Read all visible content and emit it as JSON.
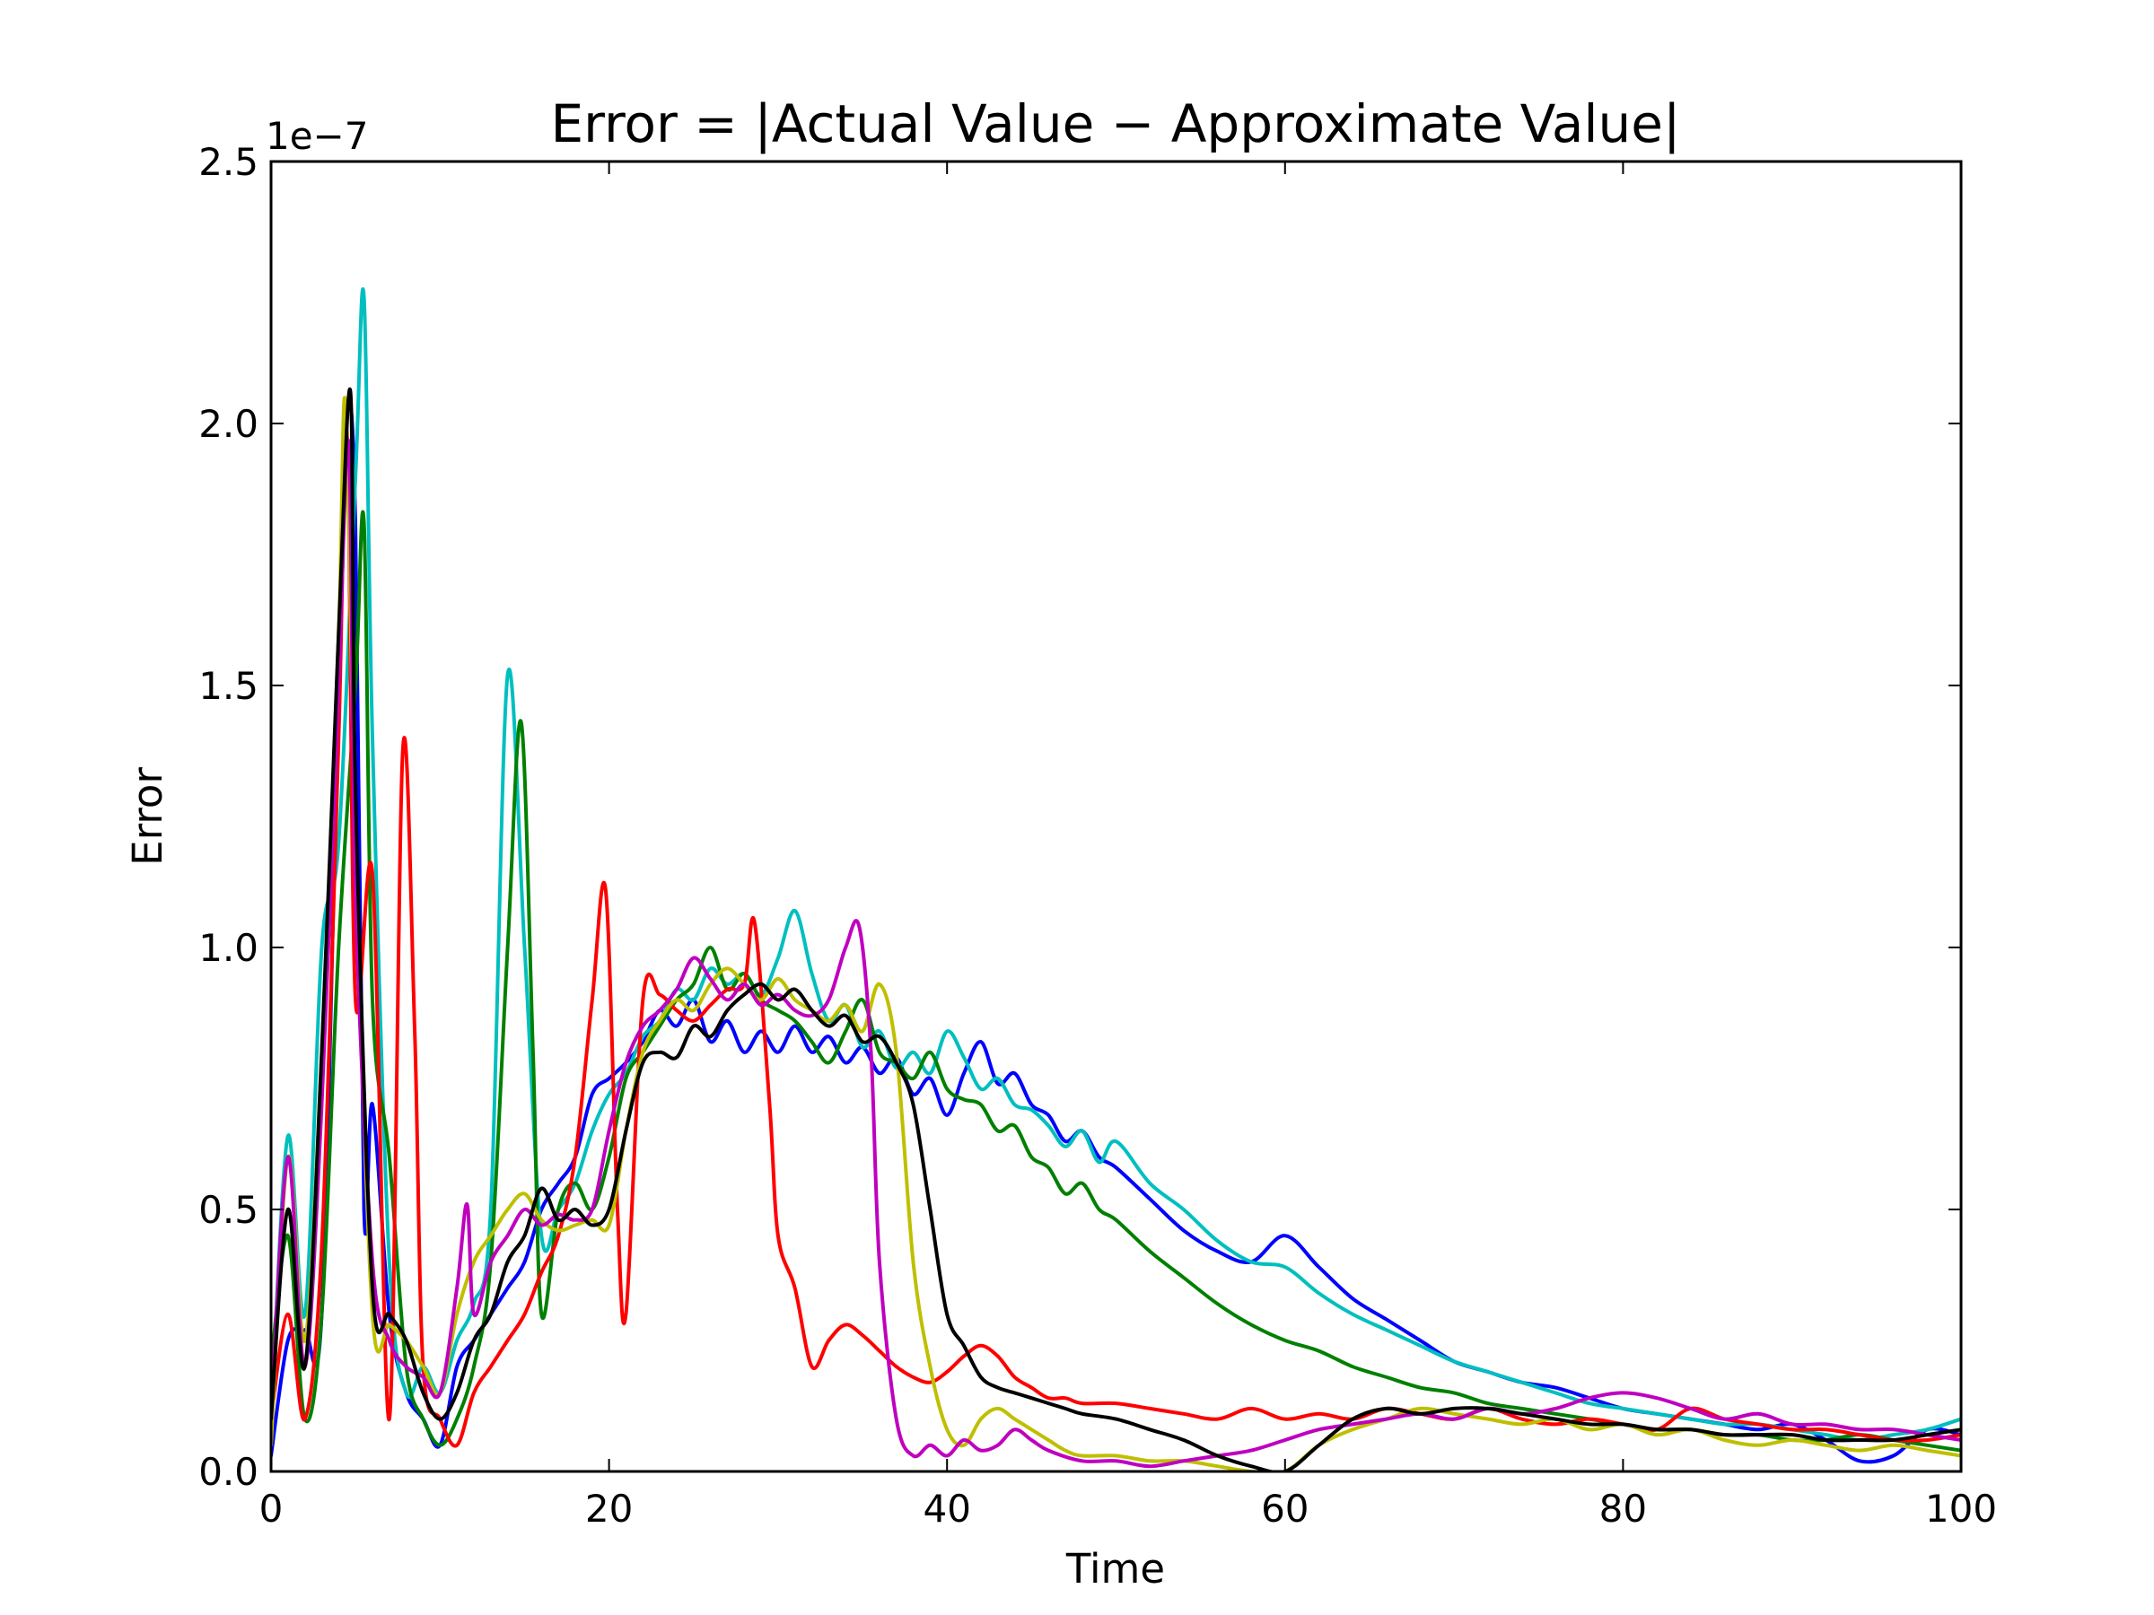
{
  "chart_data": {
    "type": "line",
    "title": "Error = |Actual Value − Approximate Value|",
    "xlabel": "Time",
    "ylabel": "Error",
    "y_offset_label": "1e−7",
    "xlim": [
      0,
      100
    ],
    "ylim": [
      0,
      2.5e-07
    ],
    "x_ticks": [
      0,
      20,
      40,
      60,
      80,
      100
    ],
    "x_tick_labels": [
      "0",
      "20",
      "40",
      "60",
      "80",
      "100"
    ],
    "y_ticks": [
      0,
      5e-08,
      1e-07,
      1.5e-07,
      2e-07,
      2.5e-07
    ],
    "y_tick_labels": [
      "0.0",
      "0.5",
      "1.0",
      "1.5",
      "2.0",
      "2.5"
    ],
    "grid": false,
    "legend": "none",
    "series": [
      {
        "color": "#0000ff",
        "x": [
          0,
          1,
          2,
          3,
          4,
          4.5,
          5,
          5.5,
          6,
          7,
          8,
          9,
          10,
          11,
          12,
          13,
          14,
          15,
          16,
          17,
          18,
          19,
          20,
          21,
          22,
          23,
          24,
          25,
          26,
          27,
          28,
          29,
          30,
          31,
          32,
          33,
          34,
          35,
          36,
          37,
          38,
          39,
          40,
          41,
          42,
          43,
          44,
          45,
          46,
          47,
          48,
          49,
          50,
          52,
          54,
          56,
          58,
          60,
          62,
          64,
          66,
          68,
          70,
          72,
          74,
          76,
          78,
          80,
          82,
          84,
          86,
          88,
          90,
          92,
          94,
          96,
          98,
          100
        ],
        "y": [
          3e-09,
          2.5e-08,
          2.7e-08,
          3e-08,
          1.5e-07,
          2.02e-07,
          1.8e-07,
          5e-08,
          7e-08,
          3e-08,
          1.5e-08,
          1e-08,
          5e-09,
          2e-08,
          2.5e-08,
          3e-08,
          3.5e-08,
          4e-08,
          5e-08,
          5.5e-08,
          6e-08,
          7.2e-08,
          7.5e-08,
          7.8e-08,
          8.2e-08,
          8.8e-08,
          8.5e-08,
          9e-08,
          8.2e-08,
          8.6e-08,
          8e-08,
          8.4e-08,
          8e-08,
          8.5e-08,
          8e-08,
          8.3e-08,
          7.8e-08,
          8.1e-08,
          7.6e-08,
          7.9e-08,
          7.2e-08,
          7.5e-08,
          6.8e-08,
          7.6e-08,
          8.2e-08,
          7.4e-08,
          7.6e-08,
          7e-08,
          6.8e-08,
          6.3e-08,
          6.5e-08,
          6e-08,
          5.8e-08,
          5.2e-08,
          4.6e-08,
          4.2e-08,
          4e-08,
          4.5e-08,
          3.9e-08,
          3.3e-08,
          2.9e-08,
          2.5e-08,
          2.1e-08,
          1.9e-08,
          1.7e-08,
          1.6e-08,
          1.4e-08,
          1.2e-08,
          1.1e-08,
          1e-08,
          9e-09,
          8e-09,
          9e-09,
          6e-09,
          2e-09,
          3e-09,
          8e-09,
          7e-09
        ]
      },
      {
        "color": "#00bfbf",
        "x": [
          0,
          1,
          2,
          3,
          4,
          5,
          5.5,
          6,
          7,
          8,
          9,
          10,
          11,
          12,
          13,
          14,
          15,
          16,
          17,
          18,
          19,
          20,
          21,
          22,
          23,
          24,
          25,
          26,
          27,
          28,
          29,
          30,
          31,
          32,
          33,
          34,
          35,
          36,
          37,
          38,
          39,
          40,
          41,
          42,
          43,
          44,
          45,
          46,
          47,
          48,
          49,
          50,
          52,
          54,
          56,
          58,
          60,
          62,
          64,
          66,
          68,
          70,
          72,
          74,
          76,
          78,
          80,
          82,
          84,
          86,
          88,
          90,
          92,
          94,
          96,
          98,
          100
        ],
        "y": [
          1e-08,
          6.4e-08,
          3e-08,
          1e-07,
          1.2e-07,
          1.9e-07,
          2.24e-07,
          1.4e-07,
          4e-08,
          1.5e-08,
          2e-08,
          1.5e-08,
          2.5e-08,
          3.2e-08,
          5e-08,
          1.52e-07,
          1e-07,
          4.5e-08,
          5e-08,
          5.5e-08,
          6.5e-08,
          7.2e-08,
          7.6e-08,
          8.3e-08,
          8.6e-08,
          9.2e-08,
          9e-08,
          9.6e-08,
          9.3e-08,
          9.5e-08,
          9.1e-08,
          9.8e-08,
          1.07e-07,
          9.5e-08,
          8.6e-08,
          8.9e-08,
          8.1e-08,
          8.4e-08,
          7.7e-08,
          8e-08,
          7.6e-08,
          8.4e-08,
          7.9e-08,
          7.3e-08,
          7.5e-08,
          7e-08,
          6.9e-08,
          6.6e-08,
          6.2e-08,
          6.5e-08,
          5.9e-08,
          6.3e-08,
          5.5e-08,
          5e-08,
          4.4e-08,
          4e-08,
          3.9e-08,
          3.4e-08,
          3e-08,
          2.7e-08,
          2.4e-08,
          2.1e-08,
          1.9e-08,
          1.7e-08,
          1.5e-08,
          1.3e-08,
          1.2e-08,
          1.1e-08,
          1e-08,
          9e-09,
          9e-09,
          8e-09,
          7e-09,
          6e-09,
          7e-09,
          8e-09,
          1e-08
        ]
      },
      {
        "color": "#008000",
        "x": [
          0,
          1,
          2,
          3,
          4,
          5,
          5.5,
          6,
          7,
          8,
          9,
          10,
          11,
          12,
          13,
          14,
          14.8,
          15.5,
          16,
          17,
          18,
          19,
          20,
          21,
          22,
          23,
          24,
          25,
          26,
          27,
          28,
          29,
          30,
          31,
          32,
          33,
          34,
          35,
          36,
          37,
          38,
          39,
          40,
          41,
          42,
          43,
          44,
          45,
          46,
          47,
          48,
          49,
          50,
          52,
          54,
          56,
          58,
          60,
          62,
          64,
          66,
          68,
          70,
          72,
          74,
          76,
          78,
          80,
          82,
          84,
          86,
          88,
          90,
          92,
          94,
          96,
          98,
          100
        ],
        "y": [
          2e-08,
          4.5e-08,
          1e-08,
          3e-08,
          1e-07,
          1.5e-07,
          1.81e-07,
          9e-08,
          6e-08,
          2e-08,
          1e-08,
          5e-09,
          1e-08,
          2e-08,
          4e-08,
          1e-07,
          1.43e-07,
          8e-08,
          3e-08,
          5e-08,
          5.5e-08,
          5e-08,
          6e-08,
          7.5e-08,
          8e-08,
          8.5e-08,
          9e-08,
          9.3e-08,
          1e-07,
          9.2e-08,
          9.5e-08,
          9e-08,
          8.8e-08,
          8.6e-08,
          8.2e-08,
          7.8e-08,
          8.4e-08,
          9e-08,
          8e-08,
          7.8e-08,
          7.5e-08,
          8e-08,
          7.3e-08,
          7.1e-08,
          7e-08,
          6.5e-08,
          6.6e-08,
          6e-08,
          5.8e-08,
          5.3e-08,
          5.5e-08,
          5e-08,
          4.8e-08,
          4.2e-08,
          3.7e-08,
          3.2e-08,
          2.8e-08,
          2.5e-08,
          2.3e-08,
          2e-08,
          1.8e-08,
          1.6e-08,
          1.5e-08,
          1.3e-08,
          1.2e-08,
          1.1e-08,
          1e-08,
          9e-09,
          8e-09,
          8e-09,
          7e-09,
          7e-09,
          6e-09,
          6e-09,
          7e-09,
          6e-09,
          5e-09,
          4e-09
        ]
      },
      {
        "color": "#ff0000",
        "x": [
          0,
          1,
          2,
          3,
          4,
          4.5,
          5,
          6,
          7,
          7.8,
          8.5,
          9,
          10,
          11,
          12,
          13,
          14,
          15,
          16,
          17,
          18,
          19,
          19.8,
          20.5,
          21,
          22,
          23,
          24,
          25,
          26,
          27,
          28,
          28.6,
          29.5,
          30,
          31,
          32,
          33,
          34,
          35,
          36,
          37,
          38,
          39,
          40,
          41,
          42,
          43,
          44,
          45,
          46,
          47,
          48,
          50,
          52,
          54,
          56,
          58,
          60,
          62,
          64,
          66,
          68,
          70,
          72,
          74,
          76,
          78,
          80,
          82,
          84,
          86,
          88,
          90,
          92,
          94,
          96,
          98,
          100
        ],
        "y": [
          1e-08,
          3e-08,
          1e-08,
          4.3e-08,
          1.4e-07,
          1.98e-07,
          9e-08,
          1.14e-07,
          1e-08,
          1.38e-07,
          8.4e-08,
          2e-08,
          1e-08,
          5e-09,
          1.5e-08,
          2e-08,
          2.5e-08,
          3e-08,
          3.8e-08,
          4.5e-08,
          6e-08,
          9e-08,
          1.11e-07,
          5e-08,
          3e-08,
          9e-08,
          9.1e-08,
          8.8e-08,
          8.6e-08,
          8.9e-08,
          9.2e-08,
          9.3e-08,
          1.05e-07,
          7e-08,
          4.5e-08,
          3.5e-08,
          2e-08,
          2.5e-08,
          2.8e-08,
          2.6e-08,
          2.3e-08,
          2e-08,
          1.8e-08,
          1.7e-08,
          1.9e-08,
          2.2e-08,
          2.4e-08,
          2.2e-08,
          1.8e-08,
          1.6e-08,
          1.4e-08,
          1.4e-08,
          1.3e-08,
          1.3e-08,
          1.2e-08,
          1.1e-08,
          1e-08,
          1.2e-08,
          1e-08,
          1.1e-08,
          1e-08,
          1.2e-08,
          1.1e-08,
          1e-08,
          1.2e-08,
          1e-08,
          9e-09,
          1e-08,
          9e-09,
          8e-09,
          1.2e-08,
          1e-08,
          9e-09,
          8e-09,
          8e-09,
          7e-09,
          6e-09,
          6e-09,
          7e-09
        ]
      },
      {
        "color": "#bfbf00",
        "x": [
          0,
          1,
          2,
          3,
          4,
          4.4,
          5,
          6,
          7,
          8,
          9,
          10,
          11,
          12,
          13,
          14,
          15,
          16,
          17,
          18,
          19,
          20,
          21,
          22,
          23,
          24,
          25,
          26,
          27,
          28,
          29,
          30,
          31,
          32,
          33,
          34,
          35,
          36,
          37,
          38,
          39,
          40,
          41,
          42,
          43,
          44,
          45,
          46,
          47,
          48,
          50,
          52,
          54,
          56,
          58,
          60,
          62,
          64,
          66,
          68,
          70,
          72,
          74,
          76,
          78,
          80,
          82,
          84,
          86,
          88,
          90,
          92,
          94,
          96,
          98,
          100
        ],
        "y": [
          5e-09,
          6e-08,
          2.5e-08,
          8e-08,
          1.6e-07,
          2.04e-07,
          1.2e-07,
          3e-08,
          2.8e-08,
          2.5e-08,
          2e-08,
          1.5e-08,
          3e-08,
          4e-08,
          4.5e-08,
          5e-08,
          5.3e-08,
          4.8e-08,
          4.6e-08,
          4.7e-08,
          4.8e-08,
          4.7e-08,
          6.5e-08,
          8e-08,
          8.6e-08,
          9e-08,
          8.8e-08,
          9.3e-08,
          9.6e-08,
          9.3e-08,
          9e-08,
          9.4e-08,
          9e-08,
          8.8e-08,
          8.6e-08,
          8.9e-08,
          8.4e-08,
          9.3e-08,
          8e-08,
          4e-08,
          2e-08,
          8e-09,
          5e-09,
          1e-08,
          1.2e-08,
          1e-08,
          8e-09,
          6e-09,
          4e-09,
          3e-09,
          3e-09,
          2e-09,
          2e-09,
          1e-09,
          0,
          0,
          5e-09,
          8e-09,
          1e-08,
          1.2e-08,
          1.1e-08,
          1e-08,
          9e-09,
          1e-08,
          8e-09,
          9e-09,
          7e-09,
          8e-09,
          6e-09,
          5e-09,
          6e-09,
          5e-09,
          4e-09,
          5e-09,
          4e-09,
          3e-09
        ]
      },
      {
        "color": "#bf00bf",
        "x": [
          0,
          1,
          2,
          3,
          4,
          4.6,
          5,
          6,
          7,
          8,
          9,
          10,
          11,
          11.6,
          12,
          13,
          14,
          15,
          16,
          17,
          18,
          19,
          20,
          21,
          22,
          23,
          24,
          25,
          26,
          27,
          28,
          29,
          30,
          31,
          32,
          33,
          34,
          34.8,
          35.5,
          36,
          37,
          38,
          39,
          40,
          41,
          42,
          43,
          44,
          45,
          46,
          48,
          50,
          52,
          54,
          56,
          58,
          60,
          62,
          64,
          66,
          68,
          70,
          72,
          74,
          76,
          78,
          80,
          82,
          84,
          86,
          88,
          90,
          92,
          94,
          96,
          98,
          100
        ],
        "y": [
          1e-08,
          6e-08,
          2e-08,
          7e-08,
          1.5e-07,
          1.96e-07,
          1.1e-07,
          4e-08,
          2.5e-08,
          2e-08,
          1.8e-08,
          1.5e-08,
          3.5e-08,
          5.1e-08,
          3e-08,
          4e-08,
          4.5e-08,
          5e-08,
          4.7e-08,
          4.9e-08,
          4.8e-08,
          5e-08,
          6.5e-08,
          7.8e-08,
          8.5e-08,
          8.8e-08,
          9.2e-08,
          9.8e-08,
          9.4e-08,
          9e-08,
          9.3e-08,
          8.9e-08,
          9.1e-08,
          8.8e-08,
          8.7e-08,
          9e-08,
          1e-07,
          1.04e-07,
          8e-08,
          4e-08,
          1e-08,
          3e-09,
          5e-09,
          3e-09,
          6e-09,
          4e-09,
          5e-09,
          8e-09,
          6e-09,
          4e-09,
          2e-09,
          2e-09,
          1e-09,
          2e-09,
          3e-09,
          4e-09,
          6e-09,
          8e-09,
          9e-09,
          1e-08,
          1.1e-08,
          1e-08,
          1.2e-08,
          1.1e-08,
          1.2e-08,
          1.4e-08,
          1.5e-08,
          1.4e-08,
          1.2e-08,
          1e-08,
          1.1e-08,
          9e-09,
          9e-09,
          8e-09,
          8e-09,
          7e-09,
          6e-09
        ]
      },
      {
        "color": "#000000",
        "x": [
          0,
          1,
          2,
          3,
          4,
          4.7,
          5,
          6,
          7,
          8,
          9,
          10,
          11,
          12,
          13,
          14,
          15,
          16,
          17,
          18,
          19,
          20,
          21,
          22,
          23,
          24,
          25,
          26,
          27,
          28,
          29,
          30,
          31,
          32,
          33,
          34,
          35,
          36,
          37,
          38,
          39,
          40,
          41,
          42,
          43,
          44,
          45,
          46,
          47,
          48,
          50,
          52,
          54,
          56,
          58,
          60,
          62,
          64,
          66,
          68,
          70,
          72,
          74,
          76,
          78,
          80,
          82,
          84,
          86,
          88,
          90,
          92,
          94,
          96,
          98,
          100
        ],
        "y": [
          1e-08,
          5e-08,
          2e-08,
          8e-08,
          1.6e-07,
          2.06e-07,
          1.3e-07,
          3.5e-08,
          3e-08,
          2.5e-08,
          1.5e-08,
          1e-08,
          1.5e-08,
          2.5e-08,
          3e-08,
          4e-08,
          4.5e-08,
          5.4e-08,
          4.8e-08,
          5e-08,
          4.7e-08,
          5e-08,
          6.5e-08,
          7.8e-08,
          8e-08,
          7.9e-08,
          8.5e-08,
          8.3e-08,
          8.8e-08,
          9.1e-08,
          9.3e-08,
          9e-08,
          9.2e-08,
          8.8e-08,
          8.5e-08,
          8.7e-08,
          8.2e-08,
          8.3e-08,
          7.8e-08,
          7e-08,
          5e-08,
          3e-08,
          2.4e-08,
          1.8e-08,
          1.6e-08,
          1.5e-08,
          1.4e-08,
          1.3e-08,
          1.2e-08,
          1.1e-08,
          1e-08,
          8e-09,
          6e-09,
          3e-09,
          1e-09,
          0,
          5e-09,
          1e-08,
          1.2e-08,
          1.1e-08,
          1.2e-08,
          1.2e-08,
          1.1e-08,
          1e-08,
          9e-09,
          9e-09,
          8e-09,
          8e-09,
          7e-09,
          7e-09,
          7e-09,
          6e-09,
          6e-09,
          6e-09,
          7e-09,
          8e-09
        ]
      }
    ]
  }
}
